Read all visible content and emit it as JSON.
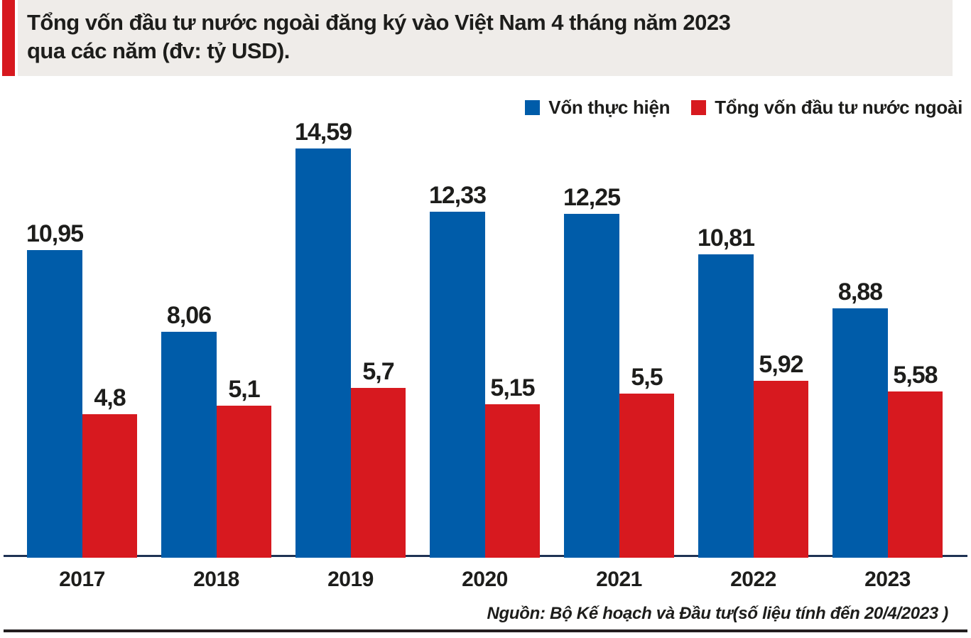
{
  "header": {
    "title_line1": "Tổng vốn đầu tư nước ngoài đăng ký vào Việt Nam 4 tháng năm 2023",
    "title_line2": "qua các năm (đv: tỷ USD)."
  },
  "legend": [
    {
      "label": "Vốn thực hiện",
      "color": "#005ca9"
    },
    {
      "label": "Tổng vốn đầu tư nước ngoài",
      "color": "#d7191f"
    }
  ],
  "source_note": "Nguồn: Bộ Kế hoạch và Đầu tư(số liệu tính đến 20/4/2023 )",
  "colors": {
    "series_blue": "#005ca9",
    "series_red": "#d7191f",
    "header_background": "#efece9",
    "accent_red": "#d7191f",
    "axis_line": "#1f3254",
    "bottom_rule": "#231f20",
    "text": "#1d1d1b"
  },
  "chart_data": {
    "type": "bar",
    "title": "Tổng vốn đầu tư nước ngoài đăng ký vào Việt Nam 4 tháng năm 2023 qua các năm (đv: tỷ USD).",
    "unit": "tỷ USD",
    "categories": [
      "2017",
      "2018",
      "2019",
      "2020",
      "2021",
      "2022",
      "2023"
    ],
    "series": [
      {
        "name": "Vốn thực hiện",
        "key": "von-thuc-hien",
        "color": "#005ca9",
        "values": [
          10.95,
          8.06,
          14.59,
          12.33,
          12.25,
          10.81,
          8.88
        ],
        "labels": [
          "10,95",
          "8,06",
          "14,59",
          "12,33",
          "12,25",
          "10,81",
          "8,88"
        ]
      },
      {
        "name": "Tổng vốn đầu tư nước ngoài",
        "key": "tong-von-dau-tu-nuoc-ngoai",
        "color": "#d7191f",
        "values": [
          4.8,
          5.1,
          5.7,
          5.15,
          5.5,
          5.92,
          5.58
        ],
        "labels": [
          "4,8",
          "5,1",
          "5,7",
          "5,15",
          "5,5",
          "5,92",
          "5,58"
        ]
      }
    ],
    "xlabel": "",
    "ylabel": "",
    "grid": false,
    "value_labels": true,
    "legend_position": "top-right",
    "source": "Nguồn: Bộ Kế hoạch và Đầu tư(số liệu tính đến 20/4/2023 )"
  }
}
